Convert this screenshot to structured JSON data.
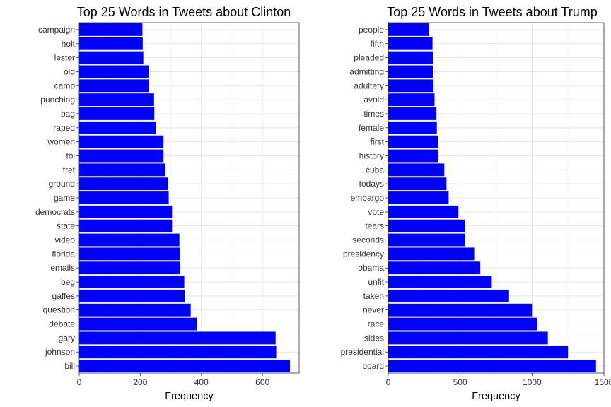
{
  "chart_data": [
    {
      "type": "bar",
      "orientation": "horizontal",
      "title": "Top 25 Words in Tweets about Clinton",
      "xlabel": "Frequency",
      "ylabel": "",
      "xlim": [
        0,
        720
      ],
      "xticks": [
        0,
        200,
        400,
        600
      ],
      "grid": true,
      "bar_color": "#0000FF",
      "categories": [
        "campaign",
        "holt",
        "lester",
        "old",
        "camp",
        "punching",
        "bag",
        "raped",
        "women",
        "fbi",
        "fret",
        "ground",
        "game",
        "democrats",
        "state",
        "video",
        "florida",
        "emails",
        "beg",
        "gaffes",
        "question",
        "debate",
        "gary",
        "johnson",
        "bill"
      ],
      "values": [
        207,
        208,
        210,
        227,
        228,
        245,
        246,
        251,
        276,
        276,
        282,
        290,
        293,
        304,
        304,
        328,
        329,
        331,
        344,
        345,
        365,
        385,
        643,
        645,
        690
      ]
    },
    {
      "type": "bar",
      "orientation": "horizontal",
      "title": "Top 25 Words in Tweets about Trump",
      "xlabel": "Frequency",
      "ylabel": "",
      "xlim": [
        0,
        1500
      ],
      "xticks": [
        0,
        500,
        1000,
        1500
      ],
      "grid": true,
      "bar_color": "#0000FF",
      "categories": [
        "people",
        "fifth",
        "pleaded",
        "admitting",
        "adultery",
        "avoid",
        "times",
        "female",
        "first",
        "history",
        "cuba",
        "todays",
        "embargo",
        "vote",
        "tears",
        "seconds",
        "presidency",
        "obama",
        "unfit",
        "taken",
        "never",
        "race",
        "sides",
        "presidential",
        "board"
      ],
      "values": [
        285,
        308,
        310,
        310,
        315,
        322,
        335,
        338,
        345,
        348,
        390,
        405,
        420,
        488,
        535,
        535,
        598,
        640,
        720,
        840,
        1000,
        1038,
        1110,
        1250,
        1445
      ]
    }
  ]
}
